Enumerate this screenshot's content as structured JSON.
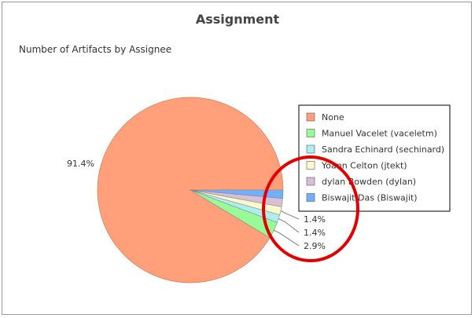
{
  "chart_data": {
    "type": "pie",
    "title": "Assignment",
    "subtitle": "Number of Artifacts by Assignee",
    "categories": [
      "None",
      "Manuel Vacelet (vaceletm)",
      "Sandra Echinard (sechinard)",
      "Yoann Celton (jtekt)",
      "dylan Bowden (dylan)",
      "Biswajit Das (Biswajit)"
    ],
    "values": [
      91.4,
      2.9,
      1.4,
      1.4,
      1.45,
      1.45
    ],
    "labels": [
      "91.4%",
      "2.9%",
      "1.4%",
      "1.4%",
      "",
      ""
    ],
    "colors": [
      "#FFA07A",
      "#98FB98",
      "#AFEEEE",
      "#FFFACD",
      "#D8BFD8",
      "#6FB0FF"
    ],
    "legend_position": "right"
  },
  "annotation": {
    "type": "red-circle-highlight",
    "color": "#E00000"
  }
}
